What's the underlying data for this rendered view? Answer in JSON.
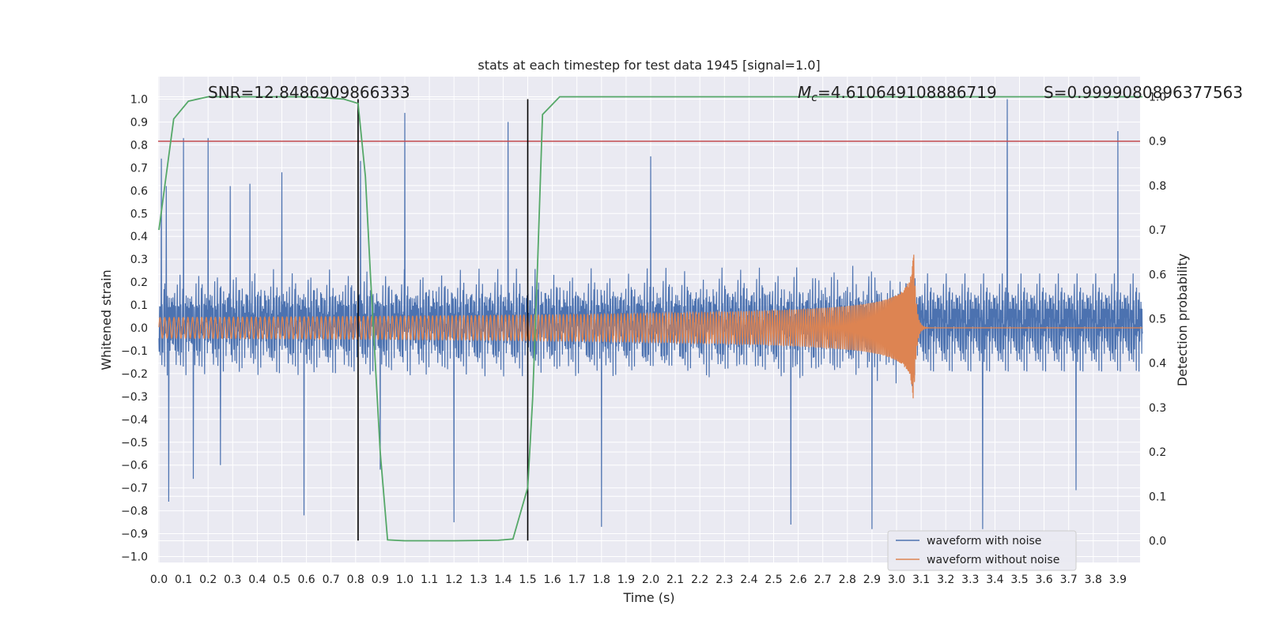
{
  "chart_data": {
    "type": "line",
    "title": "stats at each timestep for test data 1945 [signal=1.0]",
    "xlabel": "Time (s)",
    "ylabel": "Whitened strain",
    "ylabel_right": "Detection probability",
    "xlim": [
      0.0,
      4.0
    ],
    "ylim": [
      -1.05,
      1.1
    ],
    "ylim_right": [
      -0.05,
      1.05
    ],
    "x_ticks": [
      0.0,
      0.1,
      0.2,
      0.3,
      0.4,
      0.5,
      0.6,
      0.7,
      0.8,
      0.9,
      1.0,
      1.1,
      1.2,
      1.3,
      1.4,
      1.5,
      1.6,
      1.7,
      1.8,
      1.9,
      2.0,
      2.1,
      2.2,
      2.3,
      2.4,
      2.5,
      2.6,
      2.7,
      2.8,
      2.9,
      3.0,
      3.1,
      3.2,
      3.3,
      3.4,
      3.5,
      3.6,
      3.7,
      3.8,
      3.9
    ],
    "x_tick_labels": [
      "0.0",
      "0.1",
      "0.2",
      "0.3",
      "0.4",
      "0.5",
      "0.6",
      "0.7",
      "0.8",
      "0.9",
      "1.0",
      "1.1",
      "1.2",
      "1.3",
      "1.4",
      "1.5",
      "1.6",
      "1.7",
      "1.8",
      "1.9",
      "2.0",
      "2.1",
      "2.2",
      "2.3",
      "2.4",
      "2.5",
      "2.6",
      "2.7",
      "2.8",
      "2.9",
      "3.0",
      "3.1",
      "3.2",
      "3.3",
      "3.4",
      "3.5",
      "3.6",
      "3.7",
      "3.8",
      "3.9"
    ],
    "y_ticks": [
      1.0,
      0.9,
      0.8,
      0.7,
      0.6,
      0.5,
      0.4,
      0.3,
      0.2,
      0.1,
      0.0,
      -0.1,
      -0.2,
      -0.3,
      -0.4,
      -0.5,
      -0.6,
      -0.7,
      -0.8,
      -0.9,
      -1.0
    ],
    "y_tick_labels": [
      "1.0",
      "0.9",
      "0.8",
      "0.7",
      "0.6",
      "0.5",
      "0.4",
      "0.3",
      "0.2",
      "0.1",
      "0.0",
      "−0.1",
      "−0.2",
      "−0.3",
      "−0.4",
      "−0.5",
      "−0.6",
      "−0.7",
      "−0.8",
      "−0.9",
      "−1.0"
    ],
    "y_right_ticks": [
      1.0,
      0.9,
      0.8,
      0.7,
      0.6,
      0.5,
      0.4,
      0.3,
      0.2,
      0.1,
      0.0
    ],
    "y_right_tick_labels": [
      "1.0",
      "0.9",
      "0.8",
      "0.7",
      "0.6",
      "0.5",
      "0.4",
      "0.3",
      "0.2",
      "0.1",
      "0.0"
    ],
    "series": [
      {
        "name": "waveform with noise",
        "color": "#4c72b0",
        "style": "dense noisy strain, amplitude roughly ±0.3 with spikes to about ±0.9",
        "envelope_max": 0.35,
        "spikes": [
          [
            0.01,
            0.74
          ],
          [
            0.03,
            0.62
          ],
          [
            0.1,
            0.83
          ],
          [
            0.2,
            0.83
          ],
          [
            0.29,
            0.62
          ],
          [
            0.37,
            0.63
          ],
          [
            0.5,
            0.68
          ],
          [
            0.82,
            0.73
          ],
          [
            1.0,
            0.94
          ],
          [
            1.42,
            0.9
          ],
          [
            2.0,
            0.75
          ],
          [
            2.9,
            0.81
          ],
          [
            3.45,
            1.0
          ],
          [
            3.9,
            0.86
          ],
          [
            0.04,
            -0.76
          ],
          [
            0.14,
            -0.66
          ],
          [
            0.25,
            -0.6
          ],
          [
            0.59,
            -0.82
          ],
          [
            0.9,
            -0.62
          ],
          [
            1.2,
            -0.85
          ],
          [
            1.8,
            -0.87
          ],
          [
            2.57,
            -0.86
          ],
          [
            2.9,
            -0.88
          ],
          [
            3.35,
            -0.88
          ],
          [
            3.73,
            -0.71
          ]
        ]
      },
      {
        "name": "waveform without noise",
        "color": "#dd8452",
        "style": "inspiral chirp, amplitude ~0.05 growing to ~0.32 at merger near 3.07 s, then ringdown to 0",
        "merger_time": 3.07,
        "amplitude_start": 0.045,
        "amplitude_peak": 0.32
      },
      {
        "name": "detection probability",
        "color": "#55a868",
        "axis": "right",
        "points": [
          [
            0.0,
            0.7
          ],
          [
            0.06,
            0.95
          ],
          [
            0.12,
            0.99
          ],
          [
            0.2,
            1.0
          ],
          [
            0.4,
            1.0
          ],
          [
            0.6,
            1.0
          ],
          [
            0.75,
            0.995
          ],
          [
            0.81,
            0.985
          ],
          [
            0.84,
            0.82
          ],
          [
            0.86,
            0.6
          ],
          [
            0.88,
            0.4
          ],
          [
            0.9,
            0.2
          ],
          [
            0.93,
            0.002
          ],
          [
            1.0,
            0.0
          ],
          [
            1.2,
            0.0
          ],
          [
            1.38,
            0.001
          ],
          [
            1.44,
            0.004
          ],
          [
            1.5,
            0.12
          ],
          [
            1.52,
            0.32
          ],
          [
            1.54,
            0.62
          ],
          [
            1.56,
            0.96
          ],
          [
            1.63,
            1.0
          ],
          [
            2.0,
            1.0
          ],
          [
            3.0,
            1.0
          ],
          [
            4.0,
            1.0
          ]
        ]
      }
    ],
    "hlines": [
      {
        "y_right": 0.9,
        "color": "#c44e52"
      }
    ],
    "vlines": [
      {
        "x": 0.81,
        "ymin": -0.93,
        "ymax": 1.0,
        "color": "#000000"
      },
      {
        "x": 1.5,
        "ymin": -0.93,
        "ymax": 1.0,
        "color": "#000000"
      }
    ],
    "annotations": {
      "snr": "SNR=12.8486909866333",
      "mc_symbol_base": "M",
      "mc_symbol_sub": "c",
      "mc_value": "=4.610649108886719",
      "s": "S=0.9999080896377563"
    },
    "legend": {
      "position": "bottom-right",
      "entries": [
        "waveform with noise",
        "waveform without noise"
      ]
    }
  }
}
